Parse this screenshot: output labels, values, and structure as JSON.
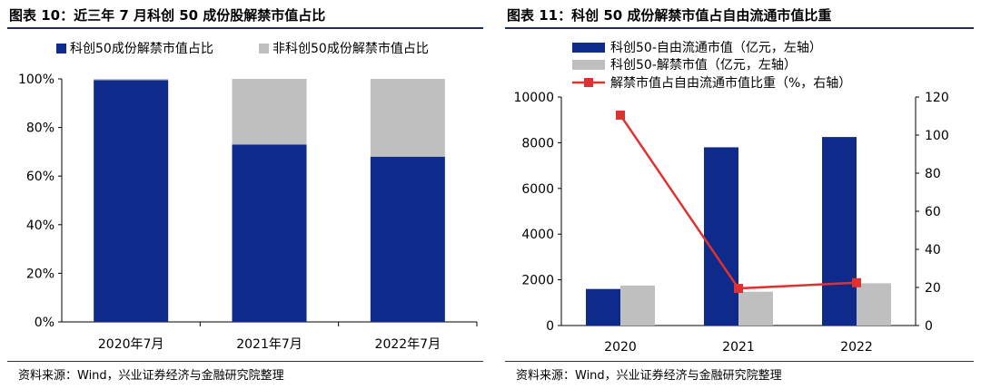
{
  "left_panel": {
    "title": "图表 10：近三年 7 月科创 50 成份股解禁市值占比",
    "source": "资料来源：Wind，兴业证券经济与金融研究院整理"
  },
  "right_panel": {
    "title": "图表 11：科创 50 成份解禁市值占自由流通市值比重",
    "source": "资料来源：Wind，兴业证券经济与金融研究院整理"
  },
  "colors": {
    "navy": "#0e2a8a",
    "gray": "#bfbfbf",
    "red": "#e03131",
    "rule": "#1f2d63"
  },
  "chart_data": [
    {
      "type": "bar",
      "stacked": true,
      "categories": [
        "2020年7月",
        "2021年7月",
        "2022年7月"
      ],
      "series": [
        {
          "name": "科创50成份解禁市值占比",
          "values": [
            99.5,
            73,
            68
          ]
        },
        {
          "name": "非科创50成份解禁市值占比",
          "values": [
            0.5,
            27,
            32
          ]
        }
      ],
      "yticks": [
        "0%",
        "20%",
        "40%",
        "60%",
        "80%",
        "100%"
      ],
      "ylim": [
        0,
        100
      ],
      "legend": "top"
    },
    {
      "type": "bar",
      "categories": [
        "2020",
        "2021",
        "2022"
      ],
      "series": [
        {
          "name": "科创50-自由流通市值（亿元，左轴）",
          "type": "bar",
          "axis": "left",
          "values": [
            1600,
            7800,
            8250
          ]
        },
        {
          "name": "科创50-解禁市值（亿元，左轴）",
          "type": "bar",
          "axis": "left",
          "values": [
            1750,
            1480,
            1850
          ]
        },
        {
          "name": "解禁市值占自由流通市值比重（%，右轴）",
          "type": "line",
          "axis": "right",
          "values": [
            110.5,
            19.5,
            22.5
          ]
        }
      ],
      "y_left": {
        "ticks": [
          "0",
          "2000",
          "4000",
          "6000",
          "8000",
          "10000"
        ],
        "lim": [
          0,
          10000
        ]
      },
      "y_right": {
        "ticks": [
          "0",
          "20",
          "40",
          "60",
          "80",
          "100",
          "120"
        ],
        "lim": [
          0,
          120
        ]
      },
      "legend": "top"
    }
  ]
}
